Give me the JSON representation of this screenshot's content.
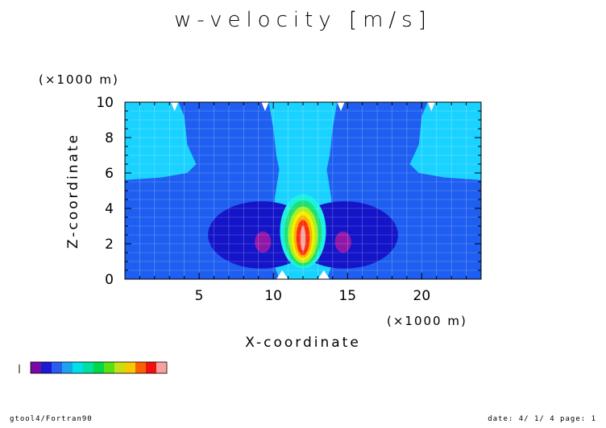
{
  "chart_data": {
    "type": "heatmap",
    "title": "w-velocity [m/s]",
    "xlabel": "X-coordinate",
    "ylabel": "Z-coordinate",
    "x_unit": "(×1000 m)",
    "z_unit": "(×1000 m)",
    "xlim": [
      0,
      24
    ],
    "ylim": [
      0,
      10
    ],
    "x_ticks": [
      5,
      10,
      15,
      20
    ],
    "y_ticks": [
      0,
      2,
      4,
      6,
      8,
      10
    ],
    "grid": true,
    "legend": "color bar, bottom-left",
    "color_levels": [
      "#7a0aa8",
      "#1a1ad0",
      "#2a5cf0",
      "#1aa4f0",
      "#00e0e8",
      "#00e0a0",
      "#00d848",
      "#58e010",
      "#c8e010",
      "#f8c800",
      "#f86000",
      "#f01010",
      "#f8a0a0"
    ],
    "contour_colors": {
      "background": "#1e5ef0",
      "upper_downdraft": "#1ad2ff",
      "core_downdraft": "#1414c8",
      "strong_downdraft": "#9018a8",
      "updraft_edge": "#18f0e0",
      "updraft_1": "#20e070",
      "updraft_2": "#a8f020",
      "updraft_3": "#f0f000",
      "updraft_4": "#ffb000",
      "updraft_5": "#f83010",
      "updraft_core": "#f8a0a0"
    }
  },
  "footer": {
    "left": "gtool4/Fortran90",
    "right": "date: 4/ 1/ 4 page: 1"
  }
}
